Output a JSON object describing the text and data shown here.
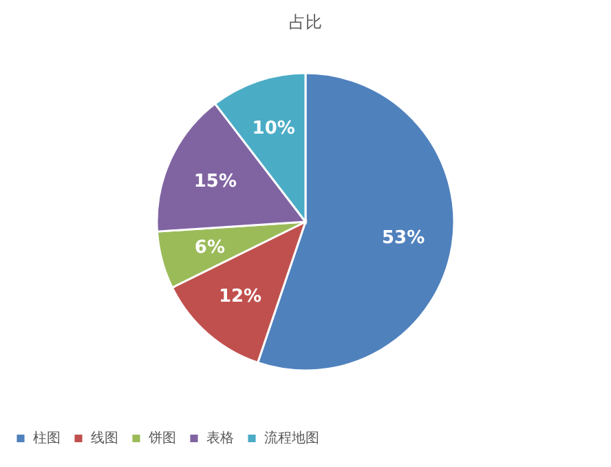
{
  "chart_data": {
    "type": "pie",
    "title": "占比",
    "categories": [
      "柱图",
      "线图",
      "饼图",
      "表格",
      "流程地图"
    ],
    "values": [
      53,
      12,
      6,
      15,
      10
    ],
    "colors": [
      "#4f81bd",
      "#c0504d",
      "#9bbb59",
      "#8064a2",
      "#4bacc6"
    ],
    "value_labels": [
      "53%",
      "12%",
      "6%",
      "15%",
      "10%"
    ],
    "legend": "bottom"
  }
}
